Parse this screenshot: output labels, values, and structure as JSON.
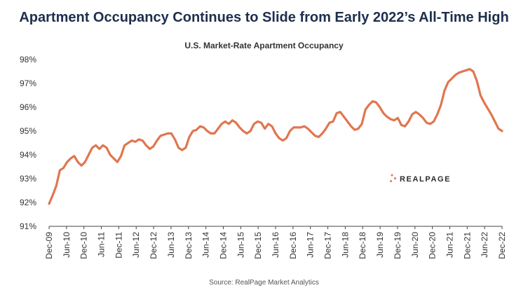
{
  "header": {
    "title": "Apartment Occupancy Continues to Slide from Early 2022’s All-Time High",
    "subtitle": "U.S. Market-Rate Apartment Occupancy"
  },
  "footer": {
    "source": "Source: RealPage Market Analytics"
  },
  "logo": {
    "text": "REALPAGE",
    "accent_color": "#e07650",
    "icon": "realpage-dots-icon"
  },
  "colors": {
    "line": "#e07650",
    "axis": "#444444"
  },
  "chart_data": {
    "type": "line",
    "title": "U.S. Market-Rate Apartment Occupancy",
    "xlabel": "",
    "ylabel": "",
    "ylim": [
      91,
      98
    ],
    "y_ticks": [
      "91%",
      "92%",
      "93%",
      "94%",
      "95%",
      "96%",
      "97%",
      "98%"
    ],
    "x_ticks": [
      "Dec-09",
      "Jun-10",
      "Dec-10",
      "Jun-11",
      "Dec-11",
      "Jun-12",
      "Dec-12",
      "Jun-13",
      "Dec-13",
      "Jun-14",
      "Dec-14",
      "Jun-15",
      "Dec-15",
      "Jun-16",
      "Dec-16",
      "Jun-17",
      "Dec-17",
      "Jun-18",
      "Dec-18",
      "Jun-19",
      "Dec-19",
      "Jun-20",
      "Dec-20",
      "Jun-21",
      "Dec-21",
      "Jun-22",
      "Dec-22"
    ],
    "grid": false,
    "series": [
      {
        "values": [
          91.95,
          92.3,
          92.7,
          93.35,
          93.45,
          93.7,
          93.85,
          93.95,
          93.7,
          93.55,
          93.7,
          94.0,
          94.3,
          94.4,
          94.25,
          94.4,
          94.3,
          94.0,
          93.85,
          93.7,
          93.95,
          94.4,
          94.5,
          94.6,
          94.55,
          94.65,
          94.6,
          94.4,
          94.25,
          94.35,
          94.6,
          94.8,
          94.85,
          94.9,
          94.9,
          94.65,
          94.3,
          94.2,
          94.3,
          94.75,
          95.0,
          95.05,
          95.2,
          95.15,
          95.0,
          94.9,
          94.9,
          95.1,
          95.3,
          95.4,
          95.3,
          95.45,
          95.35,
          95.15,
          95.0,
          94.9,
          95.0,
          95.3,
          95.4,
          95.35,
          95.1,
          95.3,
          95.2,
          94.9,
          94.7,
          94.6,
          94.7,
          95.0,
          95.15,
          95.15,
          95.15,
          95.2,
          95.1,
          94.95,
          94.8,
          94.75,
          94.9,
          95.1,
          95.35,
          95.4,
          95.75,
          95.8,
          95.6,
          95.4,
          95.2,
          95.05,
          95.1,
          95.3,
          95.9,
          96.1,
          96.25,
          96.2,
          96.0,
          95.75,
          95.6,
          95.5,
          95.45,
          95.55,
          95.25,
          95.2,
          95.4,
          95.7,
          95.8,
          95.7,
          95.55,
          95.35,
          95.3,
          95.4,
          95.7,
          96.1,
          96.7,
          97.05,
          97.2,
          97.35,
          97.45,
          97.5,
          97.55,
          97.6,
          97.5,
          97.1,
          96.5,
          96.2,
          95.95,
          95.7,
          95.4,
          95.1,
          95.0
        ]
      }
    ]
  }
}
